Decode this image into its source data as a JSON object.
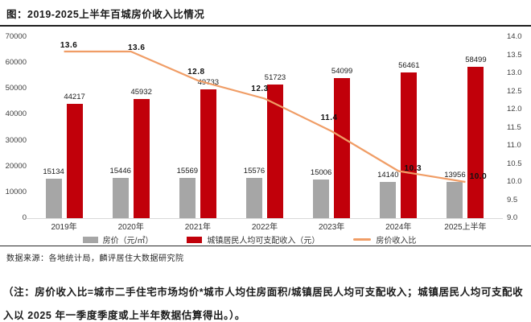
{
  "page": {
    "title": "图：2019-2025上半年百城房价收入比情况",
    "source": "数据来源：各地统计局，麟评居住大数据研究院",
    "note": "（注：房价收入比=城市二手住宅市场均价*城市人均住房面积/城镇居民人均可支配收入；城镇居民人均可支配收入以 2025 年一季度季度或上半年数据估算得出。）。"
  },
  "colors": {
    "bar_price": "#a6a6a6",
    "bar_income": "#c1000a",
    "line_ratio": "#f09d66",
    "axis_line": "#d9d9d9"
  },
  "chart_data": {
    "type": "bar",
    "subtype": "grouped-bars-with-line",
    "title": "2019-2025上半年百城房价收入比情况",
    "categories": [
      "2019年",
      "2020年",
      "2021年",
      "2022年",
      "2023年",
      "2024年",
      "2025上半年"
    ],
    "series": [
      {
        "name": "房价（元/㎡）",
        "type": "bar",
        "color": "#a6a6a6",
        "axis": "left",
        "values": [
          15134,
          15446,
          15569,
          15576,
          15006,
          14140,
          13956
        ]
      },
      {
        "name": "城镇居民人均可支配收入（元）",
        "type": "bar",
        "color": "#c1000a",
        "axis": "left",
        "values": [
          44217,
          45932,
          49733,
          51723,
          54099,
          56461,
          58499
        ]
      },
      {
        "name": "房价收入比",
        "type": "line",
        "color": "#f09d66",
        "axis": "right",
        "values": [
          13.6,
          13.6,
          12.8,
          12.3,
          11.4,
          10.3,
          10.0
        ],
        "labels": [
          "13.6",
          "13.6",
          "12.8",
          "12.3",
          "11.4",
          "10.3",
          "10.0"
        ]
      }
    ],
    "left_axis": {
      "min": 0,
      "max": 70000,
      "step": 10000,
      "ticks": [
        "0",
        "10000",
        "20000",
        "30000",
        "40000",
        "50000",
        "60000",
        "70000"
      ]
    },
    "right_axis": {
      "min": 9.0,
      "max": 14.0,
      "step": 0.5,
      "ticks": [
        "9.0",
        "9.5",
        "10.0",
        "10.5",
        "11.0",
        "11.5",
        "12.0",
        "12.5",
        "13.0",
        "13.5",
        "14.0"
      ]
    },
    "grid": false,
    "legend_position": "bottom"
  }
}
